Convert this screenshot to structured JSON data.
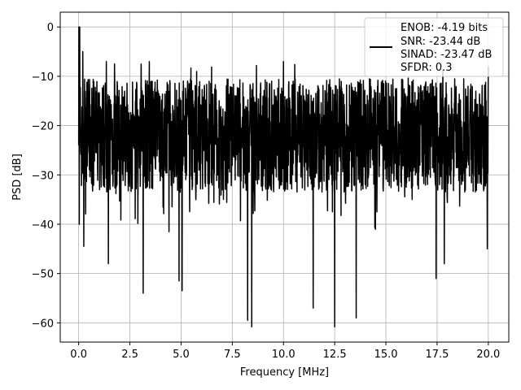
{
  "chart_data": {
    "type": "line",
    "xlabel": "Frequency [MHz]",
    "ylabel": "PSD [dB]",
    "xlim": [
      -0.9,
      21.0
    ],
    "ylim": [
      -63.9,
      3.0
    ],
    "xticks": [
      0.0,
      2.5,
      5.0,
      7.5,
      10.0,
      12.5,
      15.0,
      17.5,
      20.0
    ],
    "xtick_labels": [
      "0.0",
      "2.5",
      "5.0",
      "7.5",
      "10.0",
      "12.5",
      "15.0",
      "17.5",
      "20.0"
    ],
    "yticks": [
      0,
      -10,
      -20,
      -30,
      -40,
      -50,
      -60
    ],
    "ytick_labels": [
      "0",
      "−10",
      "−20",
      "−30",
      "−40",
      "−50",
      "−60"
    ],
    "grid": true,
    "legend_position": "top-right",
    "legend_lines": [
      "ENOB: -4.19 bits",
      "SNR: -23.44 dB",
      "SINAD: -23.47 dB",
      "SFDR: 0.3"
    ],
    "series": [
      {
        "color": "#000000",
        "x_range": [
          0.0,
          20.0
        ],
        "peak_value": 0.0,
        "band_upper": -12.0,
        "band_lower": -32.0,
        "spike_up": [
          {
            "x": 0.05,
            "y": 0.0
          },
          {
            "x": 0.2,
            "y": -5.0
          },
          {
            "x": 1.35,
            "y": -7.0
          },
          {
            "x": 1.75,
            "y": -7.5
          },
          {
            "x": 3.05,
            "y": -7.5
          },
          {
            "x": 3.45,
            "y": -7.0
          },
          {
            "x": 10.0,
            "y": -7.0
          },
          {
            "x": 20.0,
            "y": -8.0
          }
        ],
        "spike_down": [
          {
            "x": 0.25,
            "y": -44.5
          },
          {
            "x": 1.45,
            "y": -48.0
          },
          {
            "x": 3.15,
            "y": -54.0
          },
          {
            "x": 4.9,
            "y": -51.5
          },
          {
            "x": 5.05,
            "y": -53.5
          },
          {
            "x": 8.25,
            "y": -59.5
          },
          {
            "x": 8.45,
            "y": -60.8
          },
          {
            "x": 11.45,
            "y": -57.0
          },
          {
            "x": 12.5,
            "y": -60.8
          },
          {
            "x": 13.55,
            "y": -59.0
          },
          {
            "x": 17.45,
            "y": -51.0
          },
          {
            "x": 17.85,
            "y": -48.0
          },
          {
            "x": 19.95,
            "y": -45.0
          }
        ]
      }
    ]
  }
}
